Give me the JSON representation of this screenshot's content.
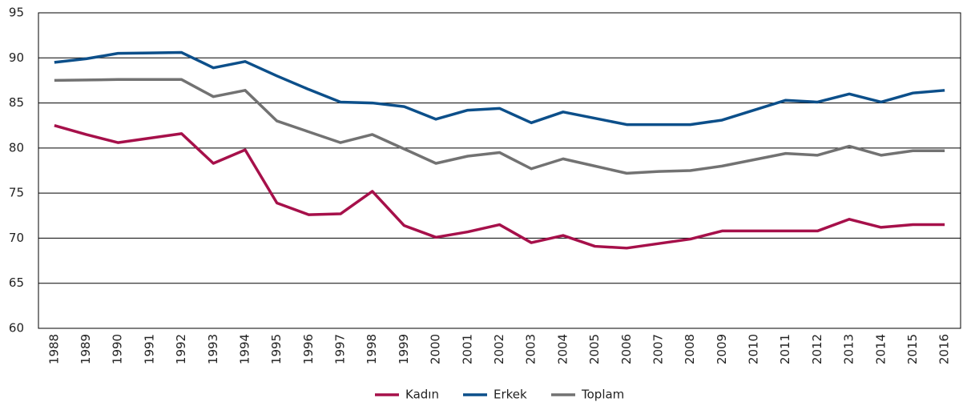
{
  "chart_data": {
    "type": "line",
    "categories": [
      "1988",
      "1989",
      "1990",
      "1991",
      "1992",
      "1993",
      "1994",
      "1995",
      "1996",
      "1997",
      "1998",
      "1999",
      "2000",
      "2001",
      "2002",
      "2003",
      "2004",
      "2005",
      "2006",
      "2007",
      "2008",
      "2009",
      "2010",
      "2011",
      "2012",
      "2013",
      "2014",
      "2015",
      "2016"
    ],
    "series": [
      {
        "name": "Kadın",
        "color": "#a6104a",
        "values": [
          82.5,
          81.5,
          80.6,
          81.1,
          81.6,
          78.3,
          79.8,
          73.9,
          72.6,
          72.7,
          75.2,
          71.4,
          70.1,
          70.7,
          71.5,
          69.5,
          70.3,
          69.1,
          68.9,
          69.4,
          69.9,
          70.8,
          70.8,
          70.8,
          70.8,
          72.1,
          71.2,
          71.5,
          71.5
        ]
      },
      {
        "name": "Erkek",
        "color": "#0c4f8a",
        "values": [
          89.5,
          89.9,
          90.5,
          90.55,
          90.6,
          88.9,
          89.6,
          88.0,
          86.5,
          85.1,
          85.0,
          84.6,
          83.2,
          84.2,
          84.4,
          82.8,
          84.0,
          83.3,
          82.6,
          82.6,
          82.6,
          83.1,
          84.2,
          85.3,
          85.1,
          86.0,
          85.1,
          86.1,
          86.4
        ]
      },
      {
        "name": "Toplam",
        "color": "#727272",
        "values": [
          87.5,
          87.55,
          87.6,
          87.6,
          87.6,
          85.7,
          86.4,
          83.0,
          81.8,
          80.6,
          81.5,
          79.9,
          78.3,
          79.1,
          79.5,
          77.7,
          78.8,
          78.0,
          77.2,
          77.4,
          77.5,
          78.0,
          78.7,
          79.4,
          79.2,
          80.2,
          79.2,
          79.7,
          79.7
        ]
      }
    ],
    "ylim": [
      60,
      95
    ],
    "yticks": [
      60,
      65,
      70,
      75,
      80,
      85,
      90,
      95
    ],
    "grid": true,
    "legend": "bottom"
  }
}
